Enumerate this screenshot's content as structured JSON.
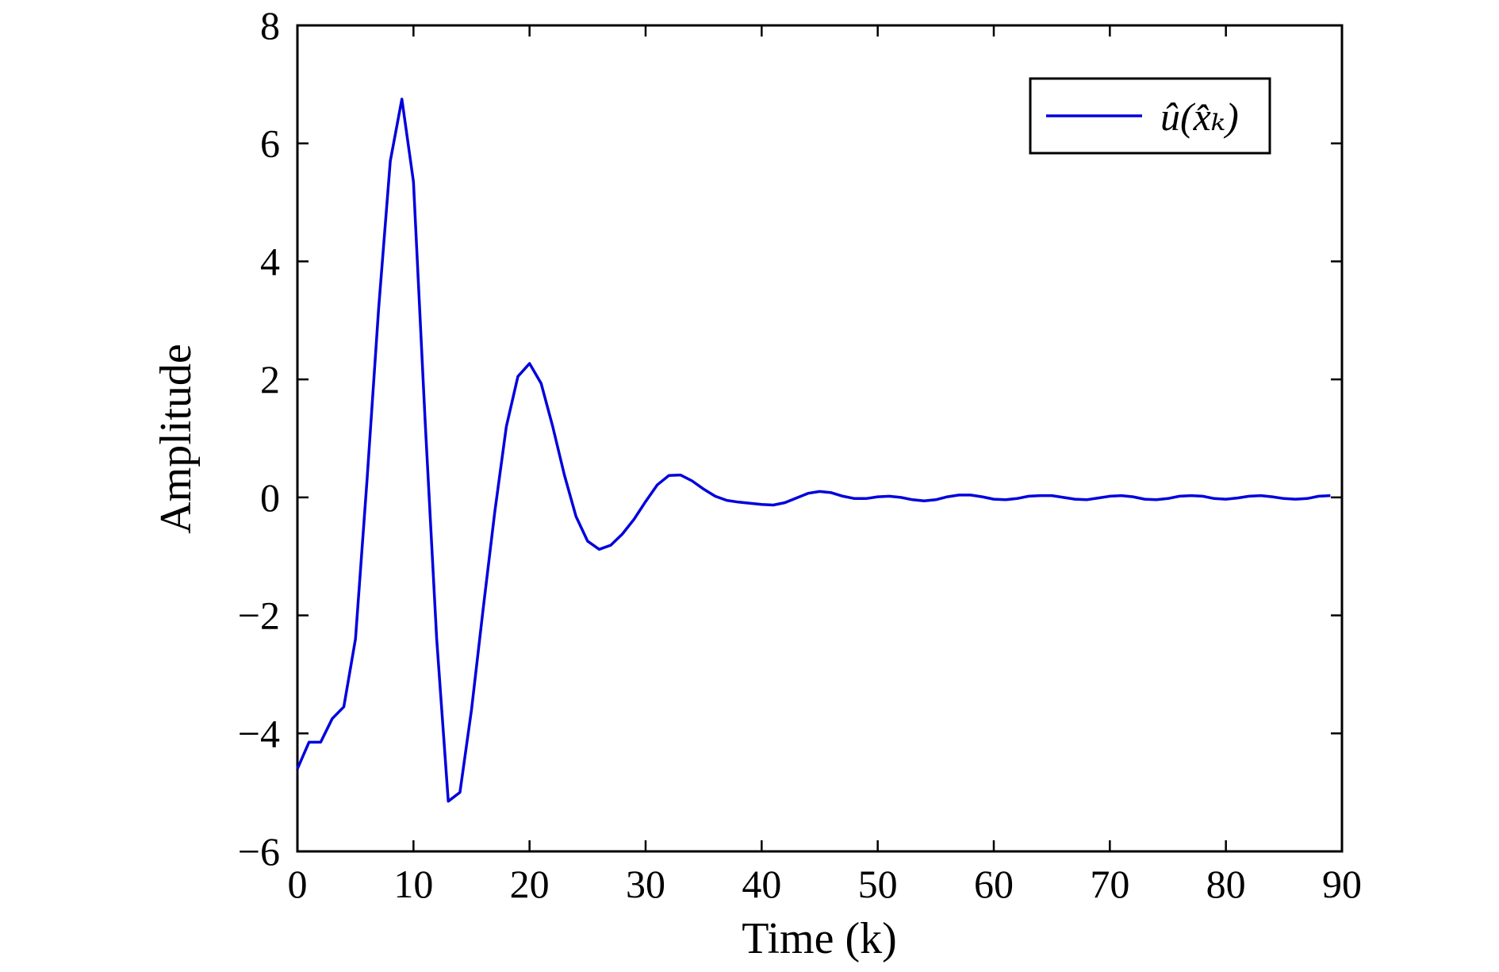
{
  "chart_data": {
    "type": "line",
    "xlabel": "Time (k)",
    "ylabel": "Amplitude",
    "xlim": [
      0,
      90
    ],
    "ylim": [
      -6,
      8
    ],
    "xticks": [
      0,
      10,
      20,
      30,
      40,
      50,
      60,
      70,
      80,
      90
    ],
    "yticks": [
      -6,
      -4,
      -2,
      0,
      2,
      4,
      6,
      8
    ],
    "xtick_labels": [
      "0",
      "10",
      "20",
      "30",
      "40",
      "50",
      "60",
      "70",
      "80",
      "90"
    ],
    "ytick_labels": [
      "−6",
      "−4",
      "−2",
      "0",
      "2",
      "4",
      "6",
      "8"
    ],
    "grid": false,
    "legend_position": "top-right",
    "series": [
      {
        "name": "û(x̂ₖ)",
        "color": "#0000dd",
        "x": [
          0,
          1,
          2,
          3,
          4,
          5,
          6,
          7,
          8,
          9,
          10,
          11,
          12,
          13,
          14,
          15,
          16,
          17,
          18,
          19,
          20,
          21,
          22,
          23,
          24,
          25,
          26,
          27,
          28,
          29,
          30,
          31,
          32,
          33,
          34,
          35,
          36,
          37,
          38,
          39,
          40,
          41,
          42,
          43,
          44,
          45,
          46,
          47,
          48,
          49,
          50,
          51,
          52,
          53,
          54,
          55,
          56,
          57,
          58,
          59,
          60,
          61,
          62,
          63,
          64,
          65,
          66,
          67,
          68,
          69,
          70,
          71,
          72,
          73,
          74,
          75,
          76,
          77,
          78,
          79,
          80,
          81,
          82,
          83,
          84,
          85,
          86,
          87,
          88,
          89
        ],
        "y": [
          -4.6,
          -4.15,
          -4.15,
          -3.75,
          -3.55,
          -2.4,
          0.3,
          3.2,
          5.7,
          6.75,
          5.35,
          1.3,
          -2.4,
          -5.15,
          -5.0,
          -3.6,
          -1.9,
          -0.25,
          1.2,
          2.05,
          2.27,
          1.93,
          1.2,
          0.38,
          -0.32,
          -0.74,
          -0.88,
          -0.81,
          -0.62,
          -0.37,
          -0.07,
          0.21,
          0.37,
          0.38,
          0.28,
          0.14,
          0.02,
          -0.05,
          -0.08,
          -0.1,
          -0.12,
          -0.13,
          -0.09,
          -0.01,
          0.07,
          0.1,
          0.08,
          0.02,
          -0.02,
          -0.02,
          0.01,
          0.02,
          0.0,
          -0.04,
          -0.06,
          -0.04,
          0.01,
          0.04,
          0.04,
          0.01,
          -0.03,
          -0.04,
          -0.02,
          0.02,
          0.03,
          0.03,
          0.0,
          -0.03,
          -0.04,
          -0.01,
          0.02,
          0.03,
          0.01,
          -0.03,
          -0.04,
          -0.02,
          0.02,
          0.03,
          0.02,
          -0.02,
          -0.03,
          -0.01,
          0.02,
          0.03,
          0.01,
          -0.02,
          -0.03,
          -0.02,
          0.02,
          0.03
        ]
      }
    ]
  }
}
